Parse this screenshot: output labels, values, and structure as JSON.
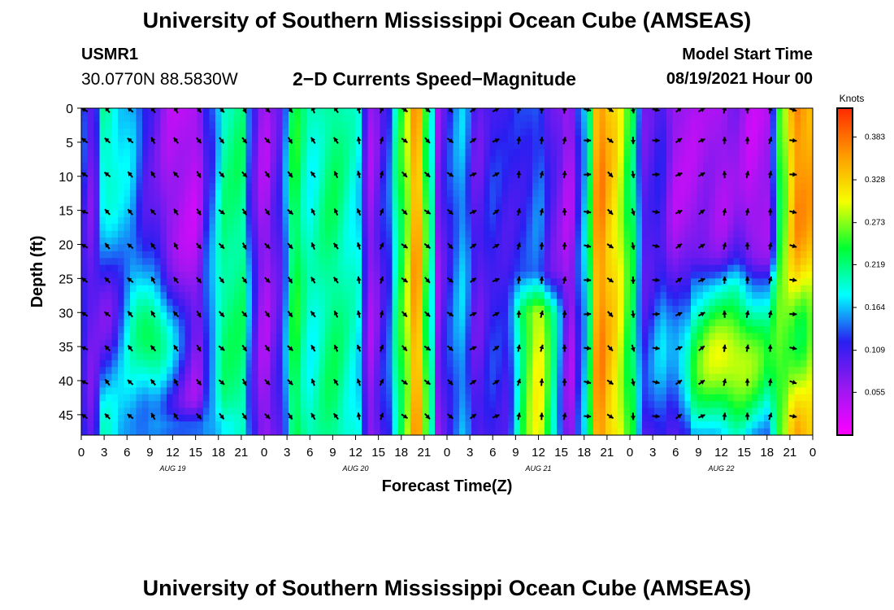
{
  "header": {
    "title": "University of Southern Mississippi Ocean Cube (AMSEAS)",
    "station": "USMR1",
    "coordinates": "30.0770N  88.5830W",
    "subtitle": "2−D Currents Speed−Magnitude",
    "model_label": "Model Start Time",
    "model_time": "08/19/2021 Hour 00"
  },
  "footer": {
    "title": "University of Southern Mississippi Ocean Cube (AMSEAS)"
  },
  "chart_data": {
    "type": "heatmap",
    "title": "2−D Currents Speed−Magnitude",
    "xlabel": "Forecast Time(Z)",
    "ylabel": "Depth (ft)",
    "x_ticks": [
      "0",
      "3",
      "6",
      "9",
      "12",
      "15",
      "18",
      "21",
      "0",
      "3",
      "6",
      "9",
      "12",
      "15",
      "18",
      "21",
      "0",
      "3",
      "6",
      "9",
      "12",
      "15",
      "18",
      "21",
      "0",
      "3",
      "6",
      "9",
      "12",
      "15",
      "18",
      "21",
      "0"
    ],
    "x_range_hours": [
      0,
      96
    ],
    "day_labels": [
      {
        "label": "AUG 19",
        "hour": 12
      },
      {
        "label": "AUG 20",
        "hour": 36
      },
      {
        "label": "AUG 21",
        "hour": 60
      },
      {
        "label": "AUG 22",
        "hour": 84
      }
    ],
    "y_ticks": [
      0,
      5,
      10,
      15,
      20,
      25,
      30,
      35,
      40,
      45
    ],
    "ylim": [
      0,
      48
    ],
    "y_inverted": true,
    "colorbar": {
      "units": "Knots",
      "tick_values": [
        0.055,
        0.109,
        0.164,
        0.219,
        0.273,
        0.328,
        0.383
      ],
      "tick_labels": [
        "0.055",
        "0.109",
        "0.164",
        "0.219",
        "0.273",
        "0.328",
        "0.383"
      ],
      "range": [
        0,
        0.42
      ],
      "colors": [
        "#ff00ff",
        "#9a18f0",
        "#2a1ef0",
        "#00ffff",
        "#00ff33",
        "#f5ff00",
        "#ff9a00",
        "#ff2a00"
      ]
    },
    "speed_profile": [
      {
        "h": 0,
        "v": 0.13
      },
      {
        "h": 1.5,
        "v": 0.08
      },
      {
        "h": 3,
        "v": 0.21
      },
      {
        "h": 6,
        "v": 0.17
      },
      {
        "h": 9,
        "v": 0.1
      },
      {
        "h": 12,
        "v": 0.05
      },
      {
        "h": 15,
        "v": 0.04
      },
      {
        "h": 17,
        "v": 0.13
      },
      {
        "h": 19,
        "v": 0.21
      },
      {
        "h": 21,
        "v": 0.22
      },
      {
        "h": 22.5,
        "v": 0.1
      },
      {
        "h": 24,
        "v": 0.05
      },
      {
        "h": 26,
        "v": 0.1
      },
      {
        "h": 28,
        "v": 0.24
      },
      {
        "h": 30,
        "v": 0.19
      },
      {
        "h": 33,
        "v": 0.22
      },
      {
        "h": 36,
        "v": 0.19
      },
      {
        "h": 38,
        "v": 0.06
      },
      {
        "h": 40,
        "v": 0.12
      },
      {
        "h": 42,
        "v": 0.24
      },
      {
        "h": 44,
        "v": 0.36
      },
      {
        "h": 45.5,
        "v": 0.24
      },
      {
        "h": 47,
        "v": 0.06
      },
      {
        "h": 48,
        "v": 0.12
      },
      {
        "h": 50,
        "v": 0.16
      },
      {
        "h": 52,
        "v": 0.09
      },
      {
        "h": 54,
        "v": 0.12
      },
      {
        "h": 56,
        "v": 0.11
      },
      {
        "h": 58,
        "v": 0.12
      },
      {
        "h": 60,
        "v": 0.14
      },
      {
        "h": 62,
        "v": 0.09
      },
      {
        "h": 64,
        "v": 0.05
      },
      {
        "h": 66,
        "v": 0.16
      },
      {
        "h": 68,
        "v": 0.37
      },
      {
        "h": 70,
        "v": 0.32
      },
      {
        "h": 72,
        "v": 0.24
      },
      {
        "h": 74,
        "v": 0.09
      },
      {
        "h": 76,
        "v": 0.11
      },
      {
        "h": 78,
        "v": 0.05
      },
      {
        "h": 80,
        "v": 0.05
      },
      {
        "h": 82,
        "v": 0.06
      },
      {
        "h": 84,
        "v": 0.05
      },
      {
        "h": 86,
        "v": 0.07
      },
      {
        "h": 88,
        "v": 0.04
      },
      {
        "h": 90,
        "v": 0.05
      },
      {
        "h": 92,
        "v": 0.26
      },
      {
        "h": 94,
        "v": 0.37
      },
      {
        "h": 96,
        "v": 0.35
      }
    ],
    "speed_blobs": [
      {
        "h": 19.5,
        "d": 30,
        "rh": 2.2,
        "rd": 12,
        "v": 0.22
      },
      {
        "h": 9,
        "d": 34,
        "rh": 4.5,
        "rd": 9,
        "v": 0.24
      },
      {
        "h": 85,
        "d": 37,
        "rh": 8,
        "rd": 11,
        "v": 0.3
      },
      {
        "h": 94.5,
        "d": 34,
        "rh": 2.5,
        "rd": 10,
        "v": 0.24
      },
      {
        "h": 13,
        "d": 47,
        "rh": 6,
        "rd": 3,
        "v": 0.15
      },
      {
        "h": 3,
        "d": 30,
        "rh": 3,
        "rd": 12,
        "v": 0.08
      }
    ],
    "arrow_hours": [
      0,
      3,
      6,
      9,
      12,
      15,
      18,
      21,
      24,
      27,
      30,
      33,
      36,
      39,
      42,
      45,
      48,
      51,
      54,
      57,
      60,
      63,
      66,
      69,
      72,
      75,
      78,
      81,
      84,
      87,
      90,
      93
    ],
    "arrow_depths": [
      0,
      4.5,
      9.5,
      15,
      20,
      25,
      30,
      35,
      40,
      45
    ],
    "arrow_direction_deg": [
      {
        "h": 0,
        "deg": 300
      },
      {
        "h": 3,
        "deg": 315
      },
      {
        "h": 9,
        "deg": 325
      },
      {
        "h": 15,
        "deg": 145
      },
      {
        "h": 18,
        "deg": 135
      },
      {
        "h": 21,
        "deg": 145
      },
      {
        "h": 24,
        "deg": 140
      },
      {
        "h": 30,
        "deg": 330
      },
      {
        "h": 36,
        "deg": 345
      },
      {
        "h": 39,
        "deg": 20
      },
      {
        "h": 42,
        "deg": 130
      },
      {
        "h": 48,
        "deg": 130
      },
      {
        "h": 51,
        "deg": 60
      },
      {
        "h": 57,
        "deg": 10
      },
      {
        "h": 63,
        "deg": 5
      },
      {
        "h": 66,
        "deg": 95
      },
      {
        "h": 69,
        "deg": 130
      },
      {
        "h": 72,
        "deg": 170
      },
      {
        "h": 75,
        "deg": 95
      },
      {
        "h": 78,
        "deg": 60
      },
      {
        "h": 84,
        "deg": 5
      },
      {
        "h": 90,
        "deg": 10
      },
      {
        "h": 93,
        "deg": 100
      }
    ]
  }
}
